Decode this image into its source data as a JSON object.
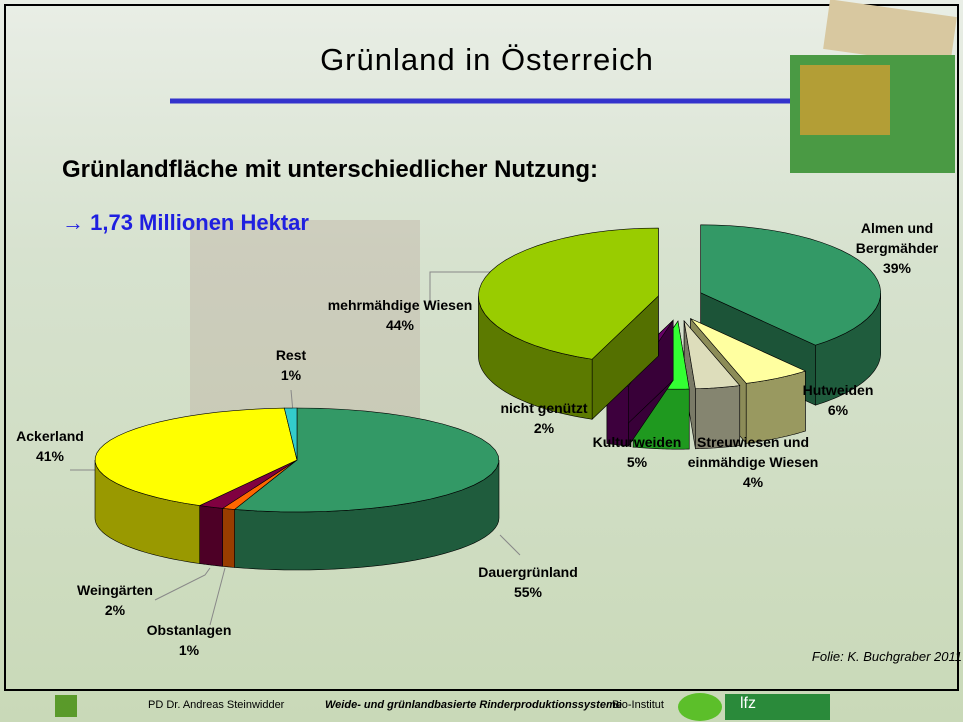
{
  "slide": {
    "title": "Grünland in Österreich",
    "heading": "Grünlandfläche mit unterschiedlicher Nutzung:",
    "subheading": "→ 1,73 Millionen Hektar",
    "source": "Folie: K. Buchgraber 2011",
    "footer": {
      "author": "PD Dr. Andreas Steinwidder",
      "course": "Weide- und grünlandbasierte Rinderproduktionssysteme",
      "institute": "Bio-Institut",
      "logo": "lfz"
    }
  },
  "chart_data": [
    {
      "type": "pie",
      "three_d": true,
      "exploded": true,
      "categories": [
        "Almen und Bergmähder",
        "Hutweiden",
        "Streuwiesen und einmähdige Wiesen",
        "Kulturweiden",
        "nicht genützt",
        "mehrmähdige Wiesen"
      ],
      "values": [
        39,
        6,
        4,
        5,
        2,
        44
      ],
      "value_labels": [
        "39%",
        "6%",
        "4%",
        "5%",
        "2%",
        "44%"
      ],
      "colors": [
        "#339966",
        "#ffffa0",
        "#ddddbb",
        "#33ff33",
        "#660066",
        "#99cc00"
      ]
    },
    {
      "type": "pie",
      "three_d": true,
      "exploded": false,
      "categories": [
        "Dauergrünland",
        "Obstanlagen",
        "Weingärten",
        "Ackerland",
        "Rest"
      ],
      "values": [
        55,
        1,
        2,
        41,
        1
      ],
      "value_labels": [
        "55%",
        "1%",
        "2%",
        "41%",
        "1%"
      ],
      "colors": [
        "#339966",
        "#ff6600",
        "#800040",
        "#ffff00",
        "#33cccc"
      ]
    }
  ]
}
